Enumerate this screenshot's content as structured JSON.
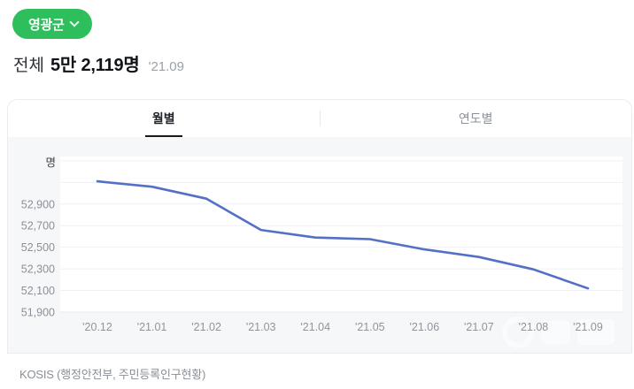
{
  "header": {
    "region_button": {
      "label": "영광군"
    },
    "title_prefix": "전체",
    "title_value": "5만 2,119명",
    "title_date": "'21.09"
  },
  "tabs": {
    "monthly": "월별",
    "yearly": "연도별"
  },
  "chart_data": {
    "type": "line",
    "title": "",
    "xlabel": "",
    "ylabel": "명",
    "x": [
      "'20.12",
      "'21.01",
      "'21.02",
      "'21.03",
      "'21.04",
      "'21.05",
      "'21.06",
      "'21.07",
      "'21.08",
      "'21.09"
    ],
    "values": [
      53110,
      53060,
      52950,
      52660,
      52590,
      52575,
      52480,
      52410,
      52295,
      52119
    ],
    "y_ticks": [
      51900,
      52100,
      52300,
      52500,
      52700,
      52900
    ],
    "y_gridlines": [
      51900,
      52100,
      52300,
      52500,
      52700,
      52900,
      53100,
      53300
    ],
    "ylim": [
      51900,
      53340
    ],
    "grid": true,
    "legend": false,
    "line_color": "#5470c6",
    "tick_color": "#8a9199",
    "grid_color": "#eef0f4",
    "plot_bg": "#ffffff"
  },
  "footer": {
    "source": "KOSIS (행정안전부, 주민등록인구현황)"
  },
  "colors": {
    "accent_green": "#2ebe5c",
    "line_blue": "#5470c6"
  }
}
